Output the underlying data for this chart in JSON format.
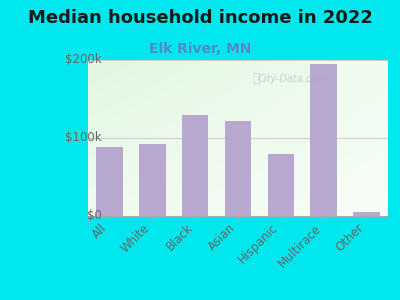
{
  "title": "Median household income in 2022",
  "subtitle": "Elk River, MN",
  "categories": [
    "All",
    "White",
    "Black",
    "Asian",
    "Hispanic",
    "Multirace",
    "Other"
  ],
  "values": [
    88000,
    92000,
    130000,
    122000,
    80000,
    195000,
    5000
  ],
  "bar_color": "#b8a8d0",
  "background_outer": "#00e8ee",
  "title_color": "#1a1a1a",
  "subtitle_color": "#5588cc",
  "tick_label_color": "#666666",
  "ylim": [
    0,
    200000
  ],
  "yticks": [
    0,
    100000,
    200000
  ],
  "ytick_labels": [
    "$0",
    "$100k",
    "$200k"
  ],
  "watermark": "City-Data.com",
  "title_fontsize": 13,
  "subtitle_fontsize": 10,
  "tick_fontsize": 8.5
}
